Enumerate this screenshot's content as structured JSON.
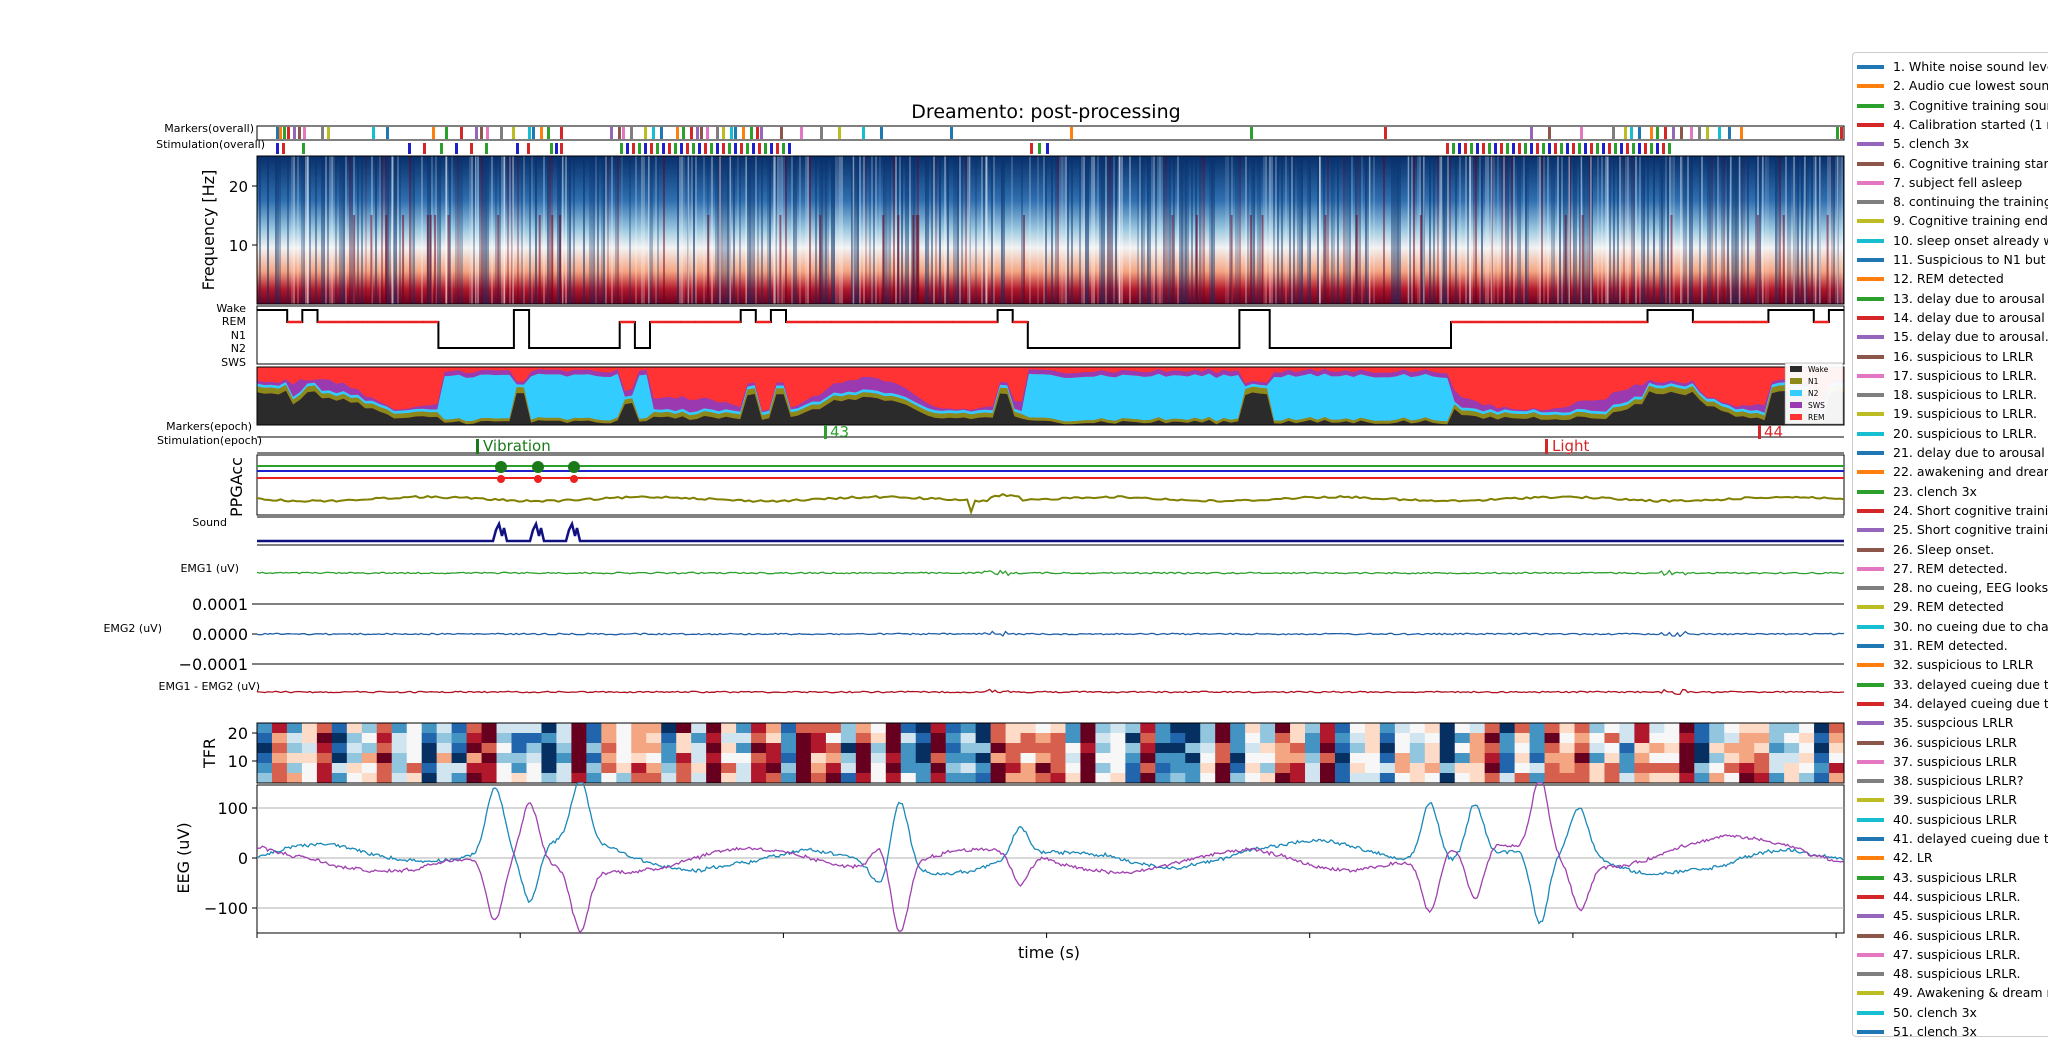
{
  "chart_data": {
    "type": "line",
    "title": "Dreamento: post-processing",
    "xlabel": "time (s)",
    "panels": {
      "markers_overall": {
        "label": "Markers(overall)"
      },
      "stimulation_overall": {
        "label": "Stimulation(overall)"
      },
      "spectrogram": {
        "ylabel": "Frequency [Hz]",
        "yticks": [
          "20",
          "10"
        ]
      },
      "hypnogram": {
        "stages": [
          "Wake",
          "REM",
          "N1",
          "N2",
          "SWS"
        ]
      },
      "stage_probabilities": {
        "legend": [
          "Wake",
          "N1",
          "N2",
          "SWS",
          "REM"
        ]
      },
      "markers_epoch": {
        "label": "Markers(epoch)",
        "annotations": [
          "43",
          "44"
        ]
      },
      "stimulation_epoch": {
        "label": "Stimulation(epoch)",
        "annotations": [
          "Vibration",
          "Light"
        ]
      },
      "ppg_acc": {
        "ylabel": "PPGAcc"
      },
      "sound": {
        "label": "Sound"
      },
      "emg1": {
        "label": "EMG1 (uV)"
      },
      "emg2": {
        "label": "EMG2 (uV)",
        "yticks": [
          "0.0001",
          "0.0000",
          "−0.0001"
        ]
      },
      "emg_diff": {
        "label": "EMG1 - EMG2 (uV)"
      },
      "tfr": {
        "ylabel": "TFR",
        "yticks": [
          "20",
          "10"
        ]
      },
      "eeg": {
        "ylabel": "EEG (uV)",
        "yticks": [
          "100",
          "0",
          "−100"
        ],
        "ylim": [
          -150,
          150
        ]
      }
    },
    "hypnogram_values": [
      0,
      0,
      1,
      0,
      1,
      1,
      1,
      1,
      1,
      1,
      1,
      1,
      3,
      3,
      3,
      3,
      3,
      0,
      3,
      3,
      3,
      3,
      3,
      3,
      1,
      3,
      1,
      1,
      1,
      1,
      1,
      1,
      0,
      1,
      0,
      1,
      1,
      1,
      1,
      1,
      1,
      1,
      1,
      1,
      1,
      1,
      1,
      1,
      1,
      0,
      1,
      3,
      3,
      3,
      3,
      3,
      3,
      3,
      3,
      3,
      3,
      3,
      3,
      3,
      3,
      0,
      0,
      3,
      3,
      3,
      3,
      3,
      3,
      3,
      3,
      3,
      3,
      3,
      3,
      1,
      1,
      1,
      1,
      1,
      1,
      1,
      1,
      1,
      1,
      1,
      1,
      1,
      0,
      0,
      0,
      1,
      1,
      1,
      1,
      1,
      0,
      0,
      0,
      1,
      0
    ],
    "legend_colors": {
      "Wake": "#2b2b2b",
      "N1": "#8c8a1a",
      "N2": "#33ccff",
      "SWS": "#9b39b0",
      "REM": "#ff3333"
    },
    "series_colors": {
      "emg1": "#2ca02c",
      "emg2": "#1f5fa8",
      "emg_diff": "#b01020",
      "eeg_a": "#1a88b8",
      "eeg_b": "#a040b0",
      "sound": "#101080",
      "acc": "#808000"
    },
    "markers": [
      {
        "name": "1. White noise sound leve",
        "color": "#1f77b4"
      },
      {
        "name": "2. Audio cue lowest soun",
        "color": "#ff7f0e"
      },
      {
        "name": "3. Cognitive training sour",
        "color": "#2ca02c"
      },
      {
        "name": "4. Calibration started (1 r",
        "color": "#d62728"
      },
      {
        "name": "5. clench 3x",
        "color": "#9467bd"
      },
      {
        "name": "6. Cognitive training star",
        "color": "#8c564b"
      },
      {
        "name": "7. subject fell asleep",
        "color": "#e377c2"
      },
      {
        "name": "8. continuing the training",
        "color": "#7f7f7f"
      },
      {
        "name": "9. Cognitive training end",
        "color": "#bcbd22"
      },
      {
        "name": "10. sleep onset already w",
        "color": "#17becf"
      },
      {
        "name": "11. Suspicious to N1 but",
        "color": "#1f77b4"
      },
      {
        "name": "12. REM detected",
        "color": "#ff7f0e"
      },
      {
        "name": "13. delay due to arousal",
        "color": "#2ca02c"
      },
      {
        "name": "14. delay due to arousal",
        "color": "#d62728"
      },
      {
        "name": "15. delay due to arousal.",
        "color": "#9467bd"
      },
      {
        "name": "16. suspicious to LRLR",
        "color": "#8c564b"
      },
      {
        "name": "17. suspicious to LRLR.",
        "color": "#e377c2"
      },
      {
        "name": "18. suspicious to LRLR.",
        "color": "#7f7f7f"
      },
      {
        "name": "19. suspicious to LRLR.",
        "color": "#bcbd22"
      },
      {
        "name": "20. suspicious to LRLR.",
        "color": "#17becf"
      },
      {
        "name": "21. delay due to arousal",
        "color": "#1f77b4"
      },
      {
        "name": "22. awakening and dream",
        "color": "#ff7f0e"
      },
      {
        "name": "23. clench 3x",
        "color": "#2ca02c"
      },
      {
        "name": "24. Short cognitive traini",
        "color": "#d62728"
      },
      {
        "name": "25. Short cognitive traini",
        "color": "#9467bd"
      },
      {
        "name": "26. Sleep onset.",
        "color": "#8c564b"
      },
      {
        "name": "27. REM detected.",
        "color": "#e377c2"
      },
      {
        "name": "28. no cueing, EEG looks",
        "color": "#7f7f7f"
      },
      {
        "name": "29. REM detected",
        "color": "#bcbd22"
      },
      {
        "name": "30. no cueing due to cha",
        "color": "#17becf"
      },
      {
        "name": "31. REM detected.",
        "color": "#1f77b4"
      },
      {
        "name": "32. suspicious to LRLR",
        "color": "#ff7f0e"
      },
      {
        "name": "33. delayed cueing due t",
        "color": "#2ca02c"
      },
      {
        "name": "34. delayed cueing due t",
        "color": "#d62728"
      },
      {
        "name": "35. suspcious LRLR",
        "color": "#9467bd"
      },
      {
        "name": "36. suspicious LRLR",
        "color": "#8c564b"
      },
      {
        "name": "37. suspicious LRLR",
        "color": "#e377c2"
      },
      {
        "name": "38. suspicious LRLR?",
        "color": "#7f7f7f"
      },
      {
        "name": "39. suspicious LRLR",
        "color": "#bcbd22"
      },
      {
        "name": "40. suspicious LRLR",
        "color": "#17becf"
      },
      {
        "name": "41. delayed cueing due t",
        "color": "#1f77b4"
      },
      {
        "name": "42. LR",
        "color": "#ff7f0e"
      },
      {
        "name": "43. suspicious LRLR",
        "color": "#2ca02c"
      },
      {
        "name": "44. suspicious LRLR.",
        "color": "#d62728"
      },
      {
        "name": "45. suspicious LRLR.",
        "color": "#9467bd"
      },
      {
        "name": "46. suspicious LRLR.",
        "color": "#8c564b"
      },
      {
        "name": "47. suspicious LRLR.",
        "color": "#e377c2"
      },
      {
        "name": "48. suspicious LRLR.",
        "color": "#7f7f7f"
      },
      {
        "name": "49. Awakening & dream r",
        "color": "#bcbd22"
      },
      {
        "name": "50. clench 3x",
        "color": "#17becf"
      },
      {
        "name": "51. clench 3x",
        "color": "#1f77b4"
      }
    ]
  }
}
